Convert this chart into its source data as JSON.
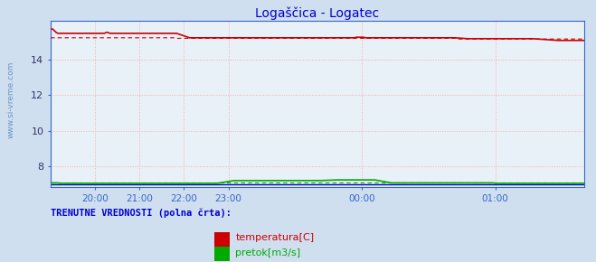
{
  "title": "Logaščica - Logatec",
  "title_color": "#0000cc",
  "bg_color": "#d0dff0",
  "plot_bg_color": "#e8f0f8",
  "watermark": "www.si-vreme.com",
  "xlim": [
    0,
    288
  ],
  "ylim": [
    6.8,
    16.2
  ],
  "yticks": [
    8,
    10,
    12,
    14
  ],
  "grid_color": "#ffaaaa",
  "temp_color": "#cc0000",
  "flow_color": "#00aa00",
  "height_color": "#0000cc",
  "legend_text1": "temperatura[C]",
  "legend_text2": "pretok[m3/s]",
  "footer_text": "TRENUTNE VREDNOSTI (polna črta):",
  "footer_color": "#0000cc",
  "xtick_positions": [
    24,
    48,
    72,
    96,
    168,
    240
  ],
  "xtick_labels": [
    "20:00",
    "21:00",
    "22:00",
    "23:00",
    "00:00",
    "01:00"
  ]
}
